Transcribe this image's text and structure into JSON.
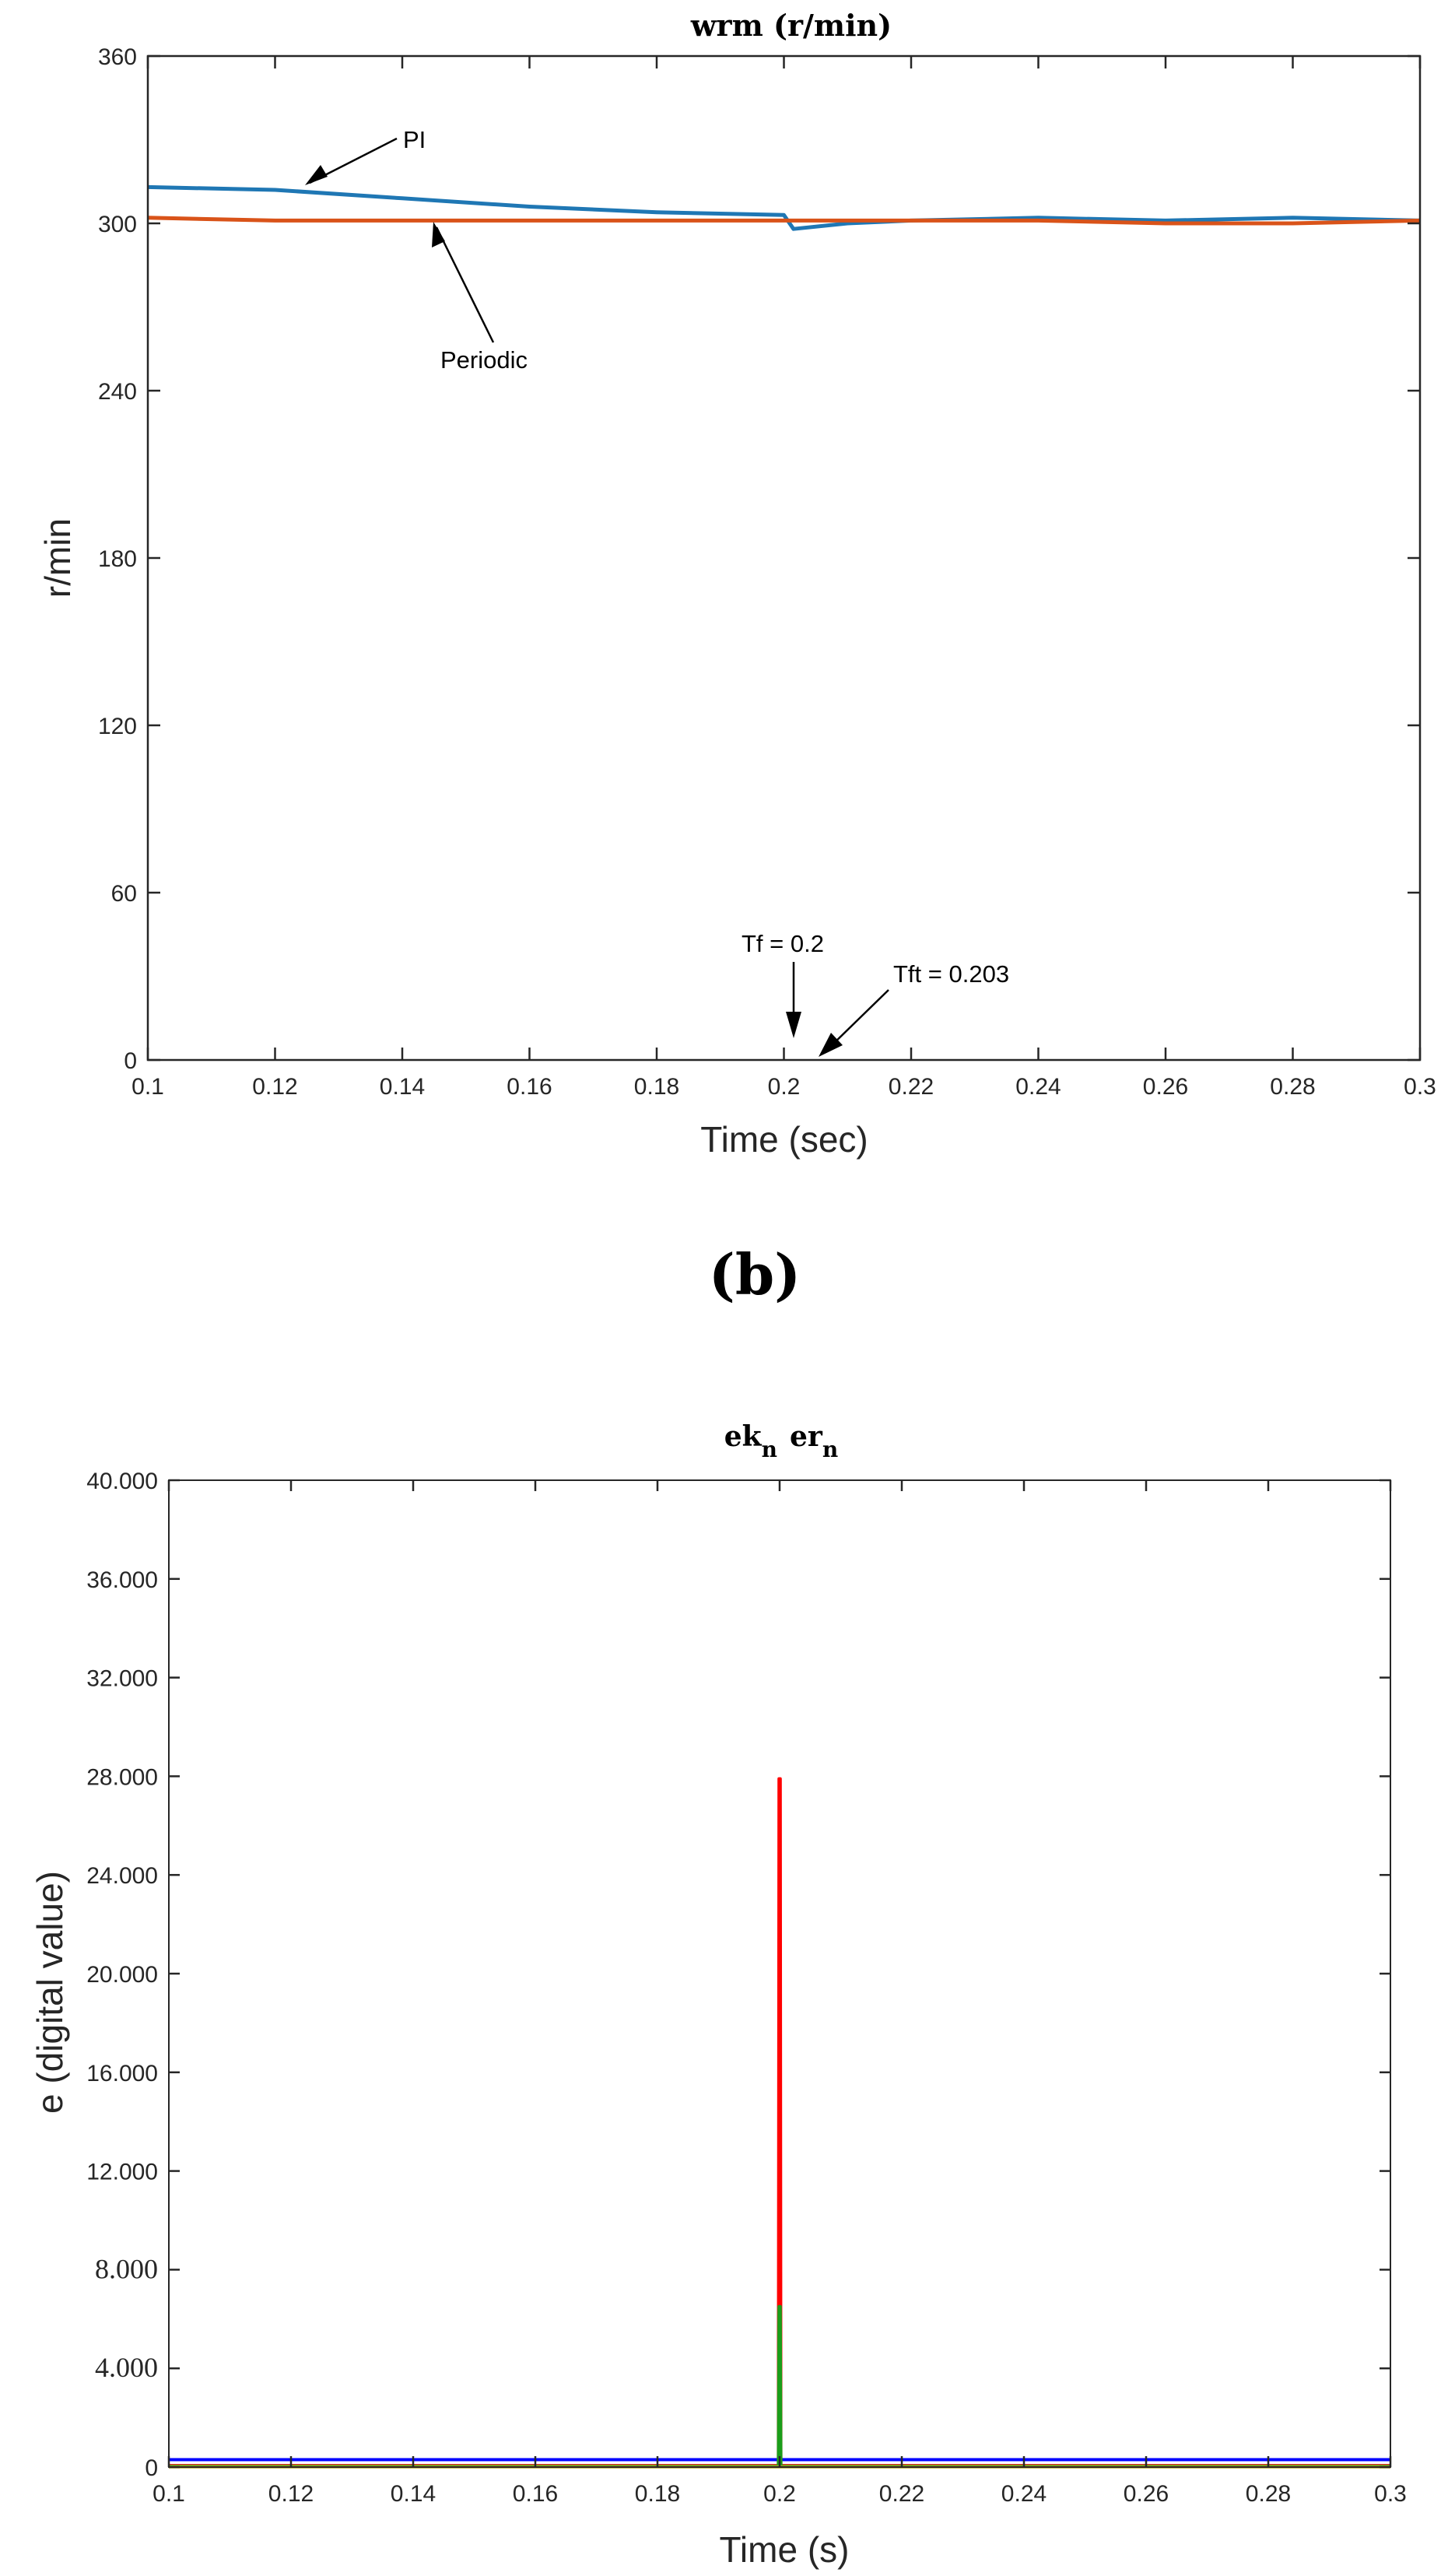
{
  "chart_data": [
    {
      "type": "line",
      "title": "wrm (r/min)",
      "xlabel": "Time (sec)",
      "ylabel": "r/min",
      "xlim": [
        0.1,
        0.3
      ],
      "ylim": [
        0,
        360
      ],
      "x_ticks": [
        "0.1",
        "0.12",
        "0.14",
        "0.16",
        "0.18",
        "0.2",
        "0.22",
        "0.24",
        "0.26",
        "0.28",
        "0.3"
      ],
      "y_ticks": [
        "0",
        "60",
        "120",
        "180",
        "240",
        "300",
        "360"
      ],
      "series": [
        {
          "color": "#1f77b4",
          "points": [
            [
              0.1,
              313
            ],
            [
              0.12,
              312
            ],
            [
              0.14,
              309
            ],
            [
              0.16,
              306
            ],
            [
              0.18,
              304
            ],
            [
              0.2,
              303
            ],
            [
              0.2015,
              298
            ],
            [
              0.21,
              300
            ],
            [
              0.22,
              301
            ],
            [
              0.24,
              302
            ],
            [
              0.26,
              301
            ],
            [
              0.28,
              302
            ],
            [
              0.3,
              301
            ]
          ]
        },
        {
          "color": "#d95319",
          "points": [
            [
              0.1,
              302
            ],
            [
              0.12,
              301
            ],
            [
              0.14,
              301
            ],
            [
              0.16,
              301
            ],
            [
              0.18,
              301
            ],
            [
              0.2,
              301
            ],
            [
              0.22,
              301
            ],
            [
              0.24,
              301
            ],
            [
              0.26,
              300
            ],
            [
              0.28,
              300
            ],
            [
              0.3,
              301
            ]
          ]
        }
      ],
      "annotations": [
        {
          "text": "PI",
          "at": [
            0.125,
            313
          ]
        },
        {
          "text": "Periodic",
          "at": [
            0.144,
            301
          ]
        },
        {
          "text": "Tf = 0.2",
          "at": [
            0.2,
            8
          ]
        },
        {
          "text": "Tft = 0.203",
          "at": [
            0.203,
            0
          ]
        }
      ]
    },
    {
      "type": "line",
      "title": "ek_n er_n",
      "title_parts": [
        "ek",
        "n",
        "er",
        "n"
      ],
      "xlabel": "Time (s)",
      "ylabel": "e (digital value)",
      "xlim": [
        0.1,
        0.3
      ],
      "ylim": [
        0,
        40000
      ],
      "x_ticks": [
        "0.1",
        "0.12",
        "0.14",
        "0.16",
        "0.18",
        "0.2",
        "0.22",
        "0.24",
        "0.26",
        "0.28",
        "0.3"
      ],
      "y_ticks": [
        "0",
        "4.000",
        "8.000",
        "12.000",
        "16.000",
        "20.000",
        "24.000",
        "28.000",
        "32.000",
        "36.000",
        "40.000"
      ],
      "series": [
        {
          "color": "#0000ff",
          "points": [
            [
              0.1,
              300
            ],
            [
              0.3,
              300
            ]
          ]
        },
        {
          "color": "#ff0000",
          "points": [
            [
              0.1,
              60
            ],
            [
              0.1998,
              60
            ],
            [
              0.1999,
              27900
            ],
            [
              0.2001,
              27900
            ],
            [
              0.2002,
              60
            ],
            [
              0.3,
              60
            ]
          ]
        },
        {
          "color": "#1a9e1a",
          "points": [
            [
              0.1,
              30
            ],
            [
              0.1998,
              30
            ],
            [
              0.1999,
              6500
            ],
            [
              0.2001,
              6500
            ],
            [
              0.2002,
              30
            ],
            [
              0.3,
              30
            ]
          ]
        },
        {
          "color": "#b5a21a",
          "points": [
            [
              0.1,
              10
            ],
            [
              0.3,
              10
            ]
          ]
        }
      ]
    }
  ],
  "panel_label": "(b)"
}
